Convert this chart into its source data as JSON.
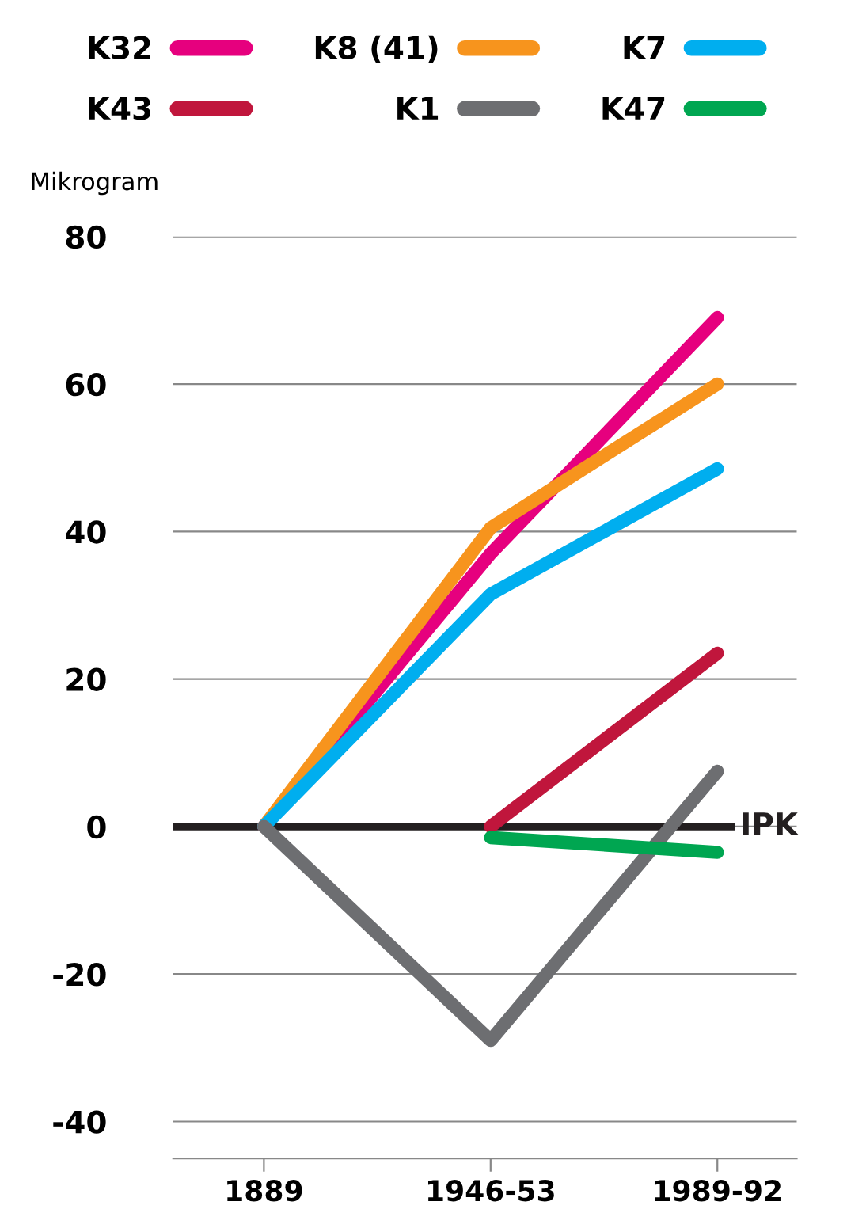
{
  "chart_data": {
    "type": "line",
    "ylabel": "Mikrogram",
    "categories": [
      "1889",
      "1946-53",
      "1989-92"
    ],
    "series": [
      {
        "name": "K32",
        "color": "#e6007e",
        "values": [
          0,
          37,
          69
        ]
      },
      {
        "name": "K8 (41)",
        "color": "#f7941d",
        "values": [
          0,
          40.5,
          60
        ]
      },
      {
        "name": "K7",
        "color": "#00aeef",
        "values": [
          0,
          31.5,
          48.5
        ]
      },
      {
        "name": "K43",
        "color": "#c0163c",
        "values": [
          null,
          0,
          23.5
        ]
      },
      {
        "name": "K1",
        "color": "#6d6e71",
        "values": [
          0,
          -29,
          7.5
        ]
      },
      {
        "name": "K47",
        "color": "#00a651",
        "values": [
          null,
          -1.5,
          -3.5
        ]
      }
    ],
    "ylim": [
      -45,
      80
    ],
    "yticks": [
      -40,
      -20,
      0,
      20,
      40,
      60,
      80
    ],
    "grid": "y",
    "legend": "top",
    "line_style": "solid",
    "marker": "none",
    "ref_lines": [
      {
        "axis": "y",
        "value": 0,
        "label": "IPK",
        "color": "#231f20"
      }
    ]
  }
}
